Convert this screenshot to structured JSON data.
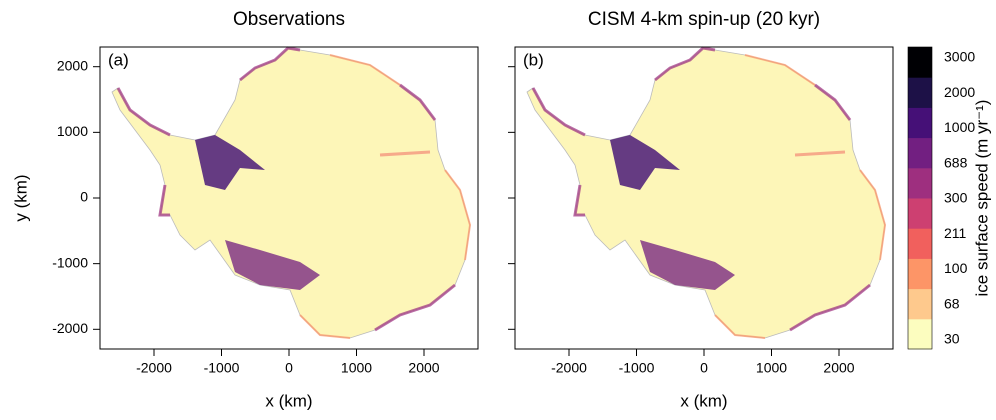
{
  "chart_data": [
    {
      "type": "map",
      "title": "Observations",
      "panel_label": "(a)",
      "xlabel": "x (km)",
      "ylabel": "y (km)",
      "xlim": [
        -2800,
        2800
      ],
      "ylim": [
        -2300,
        2300
      ],
      "xticks": [
        -2000,
        -1000,
        0,
        1000,
        2000
      ],
      "yticks": [
        -2000,
        -1000,
        0,
        1000,
        2000
      ],
      "ytick_labels": true
    },
    {
      "type": "map",
      "title": "CISM 4-km spin-up (20 kyr)",
      "panel_label": "(b)",
      "xlabel": "x (km)",
      "xlim": [
        -2800,
        2800
      ],
      "ylim": [
        -2300,
        2300
      ],
      "xticks": [
        -2000,
        -1000,
        0,
        1000,
        2000
      ],
      "yticks": [
        -2000,
        -1000,
        0,
        1000,
        2000
      ],
      "ytick_labels": false
    }
  ],
  "colorbar": {
    "label": "ice surface speed (m yr⁻¹)",
    "ticks": [
      30,
      68,
      100,
      211,
      300,
      688,
      1000,
      2000,
      3000
    ],
    "colors": [
      "#fcfdbf",
      "#fec98d",
      "#fd9567",
      "#f1605d",
      "#cd4071",
      "#9e2f7f",
      "#721f81",
      "#451077",
      "#1d1147",
      "#000004"
    ]
  }
}
